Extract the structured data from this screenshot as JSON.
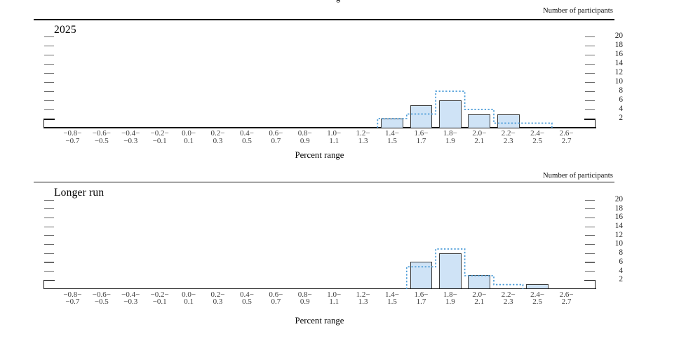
{
  "figure": {
    "cropped_title_fragment": "g"
  },
  "colors": {
    "bar_fill": "#cfe3f6",
    "bar_border": "#3c3c3c",
    "dashed_outline": "#4b9cd8",
    "axis": "#161616",
    "tick": "#6a6a6a"
  },
  "y_axis": {
    "label": "Number of participants",
    "ticks": [
      2,
      4,
      6,
      8,
      10,
      12,
      14,
      16,
      18,
      20
    ]
  },
  "x_axis": {
    "label": "Percent range",
    "bins": [
      {
        "top": "−0.8−",
        "bottom": "−0.7"
      },
      {
        "top": "−0.6−",
        "bottom": "−0.5"
      },
      {
        "top": "−0.4−",
        "bottom": "−0.3"
      },
      {
        "top": "−0.2−",
        "bottom": "−0.1"
      },
      {
        "top": "0.0−",
        "bottom": "0.1"
      },
      {
        "top": "0.2−",
        "bottom": "0.3"
      },
      {
        "top": "0.4−",
        "bottom": "0.5"
      },
      {
        "top": "0.6−",
        "bottom": "0.7"
      },
      {
        "top": "0.8−",
        "bottom": "0.9"
      },
      {
        "top": "1.0−",
        "bottom": "1.1"
      },
      {
        "top": "1.2−",
        "bottom": "1.3"
      },
      {
        "top": "1.4−",
        "bottom": "1.5"
      },
      {
        "top": "1.6−",
        "bottom": "1.7"
      },
      {
        "top": "1.8−",
        "bottom": "1.9"
      },
      {
        "top": "2.0−",
        "bottom": "2.1"
      },
      {
        "top": "2.2−",
        "bottom": "2.3"
      },
      {
        "top": "2.4−",
        "bottom": "2.5"
      },
      {
        "top": "2.6−",
        "bottom": "2.7"
      }
    ]
  },
  "chart_data": [
    {
      "type": "bar",
      "title": "2025",
      "xlabel": "Percent range",
      "ylabel": "Number of participants",
      "ylim": [
        0,
        21
      ],
      "yticks": [
        2,
        4,
        6,
        8,
        10,
        12,
        14,
        16,
        18,
        20
      ],
      "grid": false,
      "categories": [
        "−0.8–−0.7",
        "−0.6–−0.5",
        "−0.4–−0.3",
        "−0.2–−0.1",
        "0.0–0.1",
        "0.2–0.3",
        "0.4–0.5",
        "0.6–0.7",
        "0.8–0.9",
        "1.0–1.1",
        "1.2–1.3",
        "1.4–1.5",
        "1.6–1.7",
        "1.8–1.9",
        "2.0–2.1",
        "2.2–2.3",
        "2.4–2.5",
        "2.6–2.7"
      ],
      "series": [
        {
          "name": "current-projection-solid-bars",
          "values": [
            0,
            0,
            0,
            0,
            0,
            0,
            0,
            0,
            0,
            0,
            0,
            2,
            5,
            6,
            3,
            3,
            0,
            0
          ]
        },
        {
          "name": "previous-projection-dashed-outline",
          "values": [
            0,
            0,
            0,
            0,
            0,
            0,
            0,
            0,
            0,
            0,
            0,
            2,
            3,
            8,
            4,
            1,
            1,
            0
          ]
        }
      ]
    },
    {
      "type": "bar",
      "title": "Longer run",
      "xlabel": "Percent range",
      "ylabel": "Number of participants",
      "ylim": [
        0,
        21
      ],
      "yticks": [
        2,
        4,
        6,
        8,
        10,
        12,
        14,
        16,
        18,
        20
      ],
      "grid": false,
      "categories": [
        "−0.8–−0.7",
        "−0.6–−0.5",
        "−0.4–−0.3",
        "−0.2–−0.1",
        "0.0–0.1",
        "0.2–0.3",
        "0.4–0.5",
        "0.6–0.7",
        "0.8–0.9",
        "1.0–1.1",
        "1.2–1.3",
        "1.4–1.5",
        "1.6–1.7",
        "1.8–1.9",
        "2.0–2.1",
        "2.2–2.3",
        "2.4–2.5",
        "2.6–2.7"
      ],
      "series": [
        {
          "name": "current-projection-solid-bars",
          "values": [
            0,
            0,
            0,
            0,
            0,
            0,
            0,
            0,
            0,
            0,
            0,
            0,
            6,
            8,
            3,
            0,
            1,
            0
          ]
        },
        {
          "name": "previous-projection-dashed-outline",
          "values": [
            0,
            0,
            0,
            0,
            0,
            0,
            0,
            0,
            0,
            0,
            0,
            0,
            5,
            9,
            3,
            1,
            0,
            0
          ]
        }
      ]
    }
  ]
}
